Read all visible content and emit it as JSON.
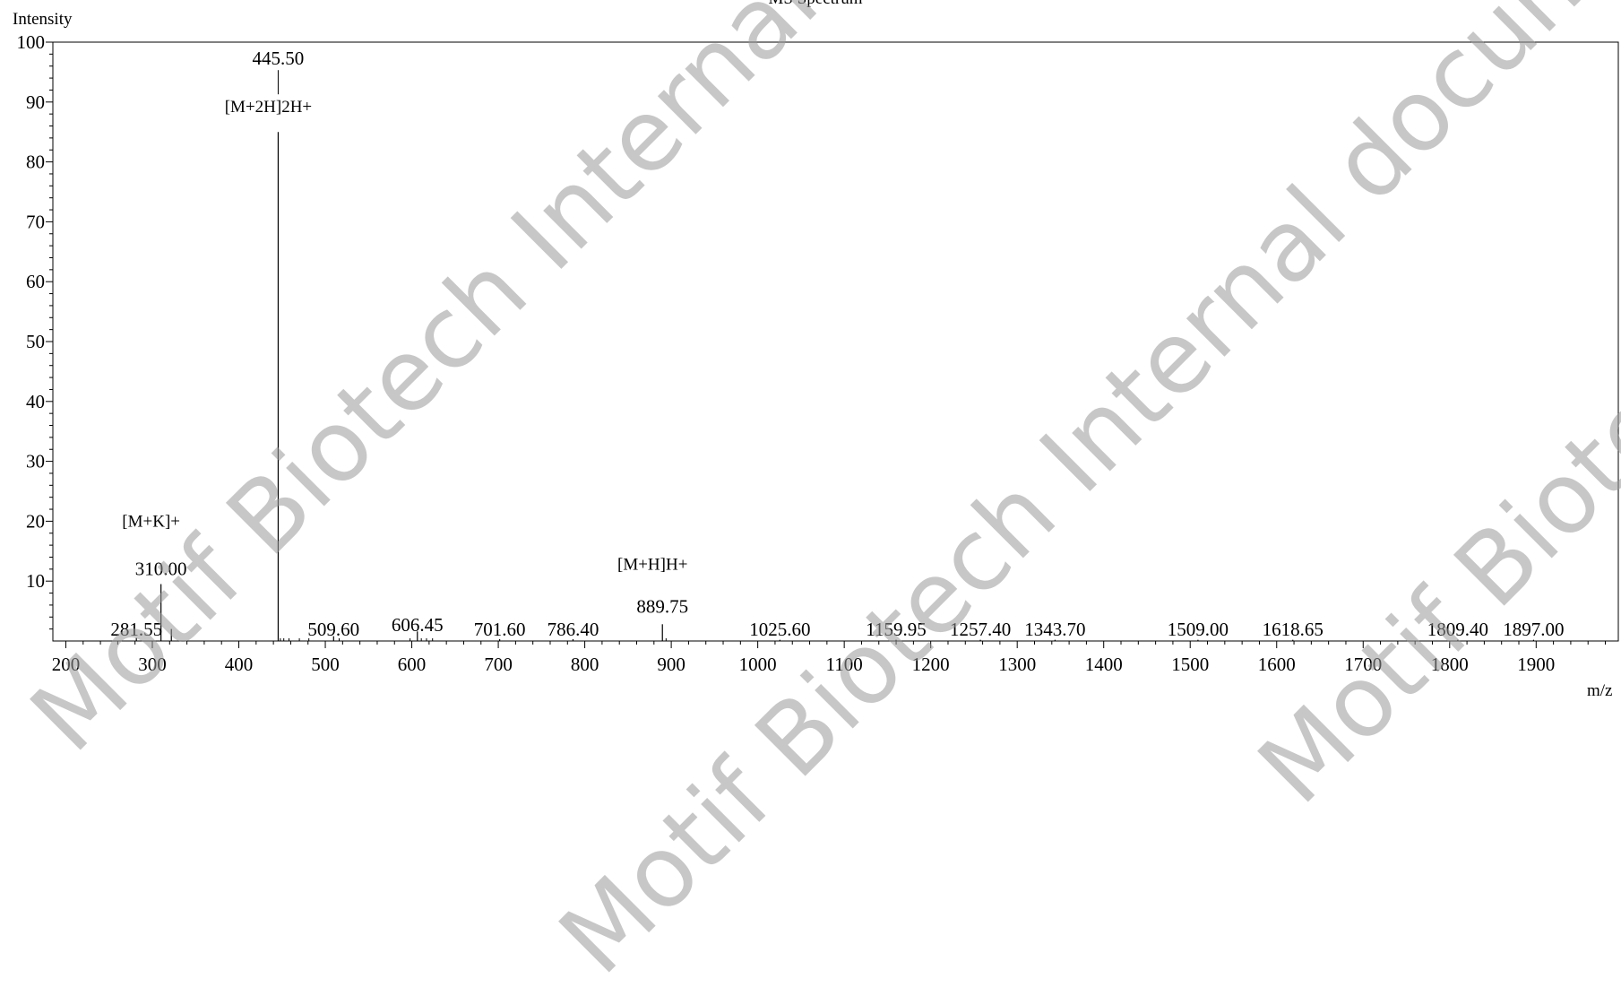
{
  "chart_data": {
    "type": "line",
    "title": "MS Spectrum",
    "xlabel": "m/z",
    "ylabel": "Intensity",
    "xlim": [
      185,
      1995
    ],
    "ylim": [
      0,
      100
    ],
    "x_ticks": [
      200,
      300,
      400,
      500,
      600,
      700,
      800,
      900,
      1000,
      1100,
      1200,
      1300,
      1400,
      1500,
      1600,
      1700,
      1800,
      1900
    ],
    "y_ticks": [
      10,
      20,
      30,
      40,
      50,
      60,
      70,
      80,
      90,
      100
    ],
    "grid": false,
    "series": [
      {
        "peaks": [
          {
            "mz": 281.55,
            "intensity": 0.5,
            "label": "281.55"
          },
          {
            "mz": 310.0,
            "intensity": 9.5,
            "label": "310.00",
            "annotation": "[M+K]+"
          },
          {
            "mz": 322.0,
            "intensity": 2.0
          },
          {
            "mz": 445.5,
            "intensity": 85.0,
            "label": "445.50",
            "annotation": "[M+2H]2H+"
          },
          {
            "mz": 509.6,
            "intensity": 0.8,
            "label": "509.60"
          },
          {
            "mz": 606.45,
            "intensity": 1.6,
            "label": "606.45"
          },
          {
            "mz": 701.6,
            "intensity": 0.3,
            "label": "701.60"
          },
          {
            "mz": 786.4,
            "intensity": 0.3,
            "label": "786.40"
          },
          {
            "mz": 889.75,
            "intensity": 2.8,
            "label": "889.75",
            "annotation": "[M+H]H+"
          },
          {
            "mz": 1025.6,
            "intensity": 0.2,
            "label": "1025.60"
          },
          {
            "mz": 1159.95,
            "intensity": 0.2,
            "label": "1159.95"
          },
          {
            "mz": 1257.4,
            "intensity": 0.2,
            "label": "1257.40"
          },
          {
            "mz": 1343.7,
            "intensity": 0.2,
            "label": "1343.70"
          },
          {
            "mz": 1509.0,
            "intensity": 0.2,
            "label": "1509.00"
          },
          {
            "mz": 1618.65,
            "intensity": 0.2,
            "label": "1618.65"
          },
          {
            "mz": 1809.4,
            "intensity": 0.2,
            "label": "1809.40"
          },
          {
            "mz": 1897.0,
            "intensity": 0.2,
            "label": "1897.00"
          }
        ]
      }
    ]
  },
  "watermark": {
    "text": "Motif Biotech Internal document",
    "color": "#9a9a9a"
  }
}
